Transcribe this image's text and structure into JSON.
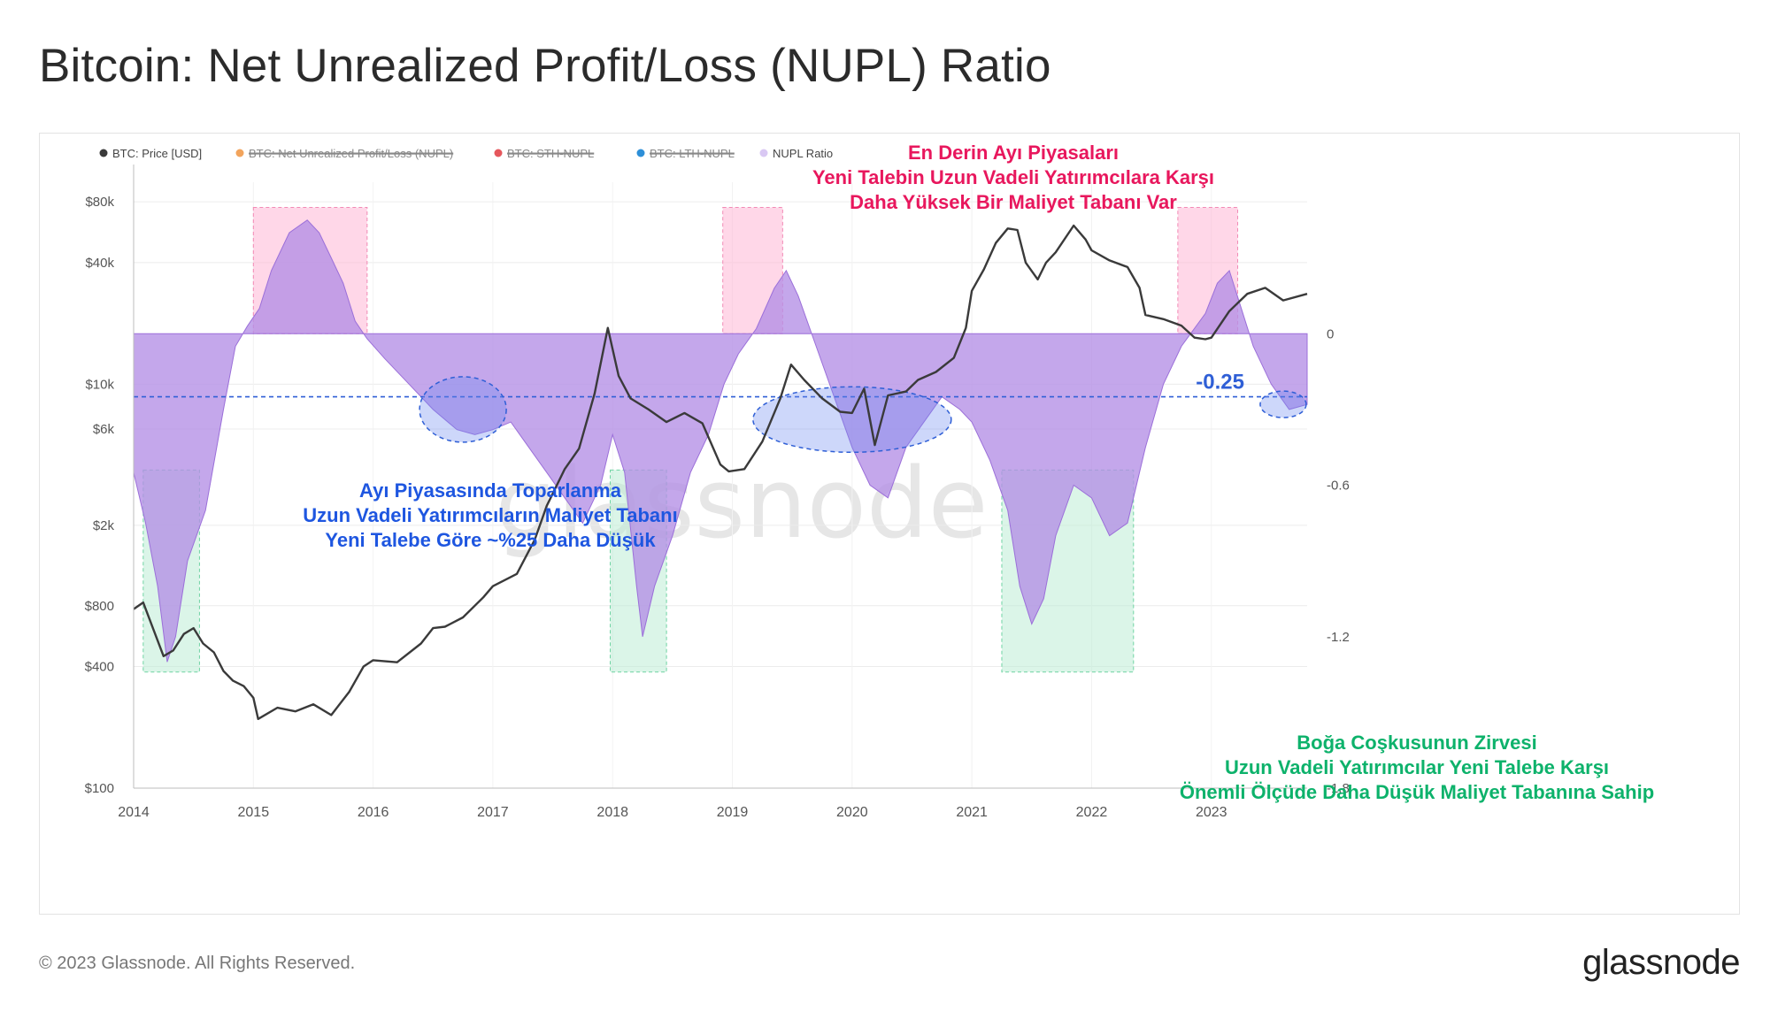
{
  "page": {
    "title": "Bitcoin: Net Unrealized Profit/Loss (NUPL) Ratio",
    "copyright": "© 2023 Glassnode. All Rights Reserved.",
    "logo": "glassnode",
    "watermark": "glassnode"
  },
  "colors": {
    "price": "#3a3a3a",
    "nupl_fill": "#b48ee6",
    "euphoria_box": "#ffb6d5",
    "euphoria_text": "#e8175d",
    "capitulation_box": "#b8ecd2",
    "capitulation_text": "#0db26b",
    "bear_text": "#1e56e0",
    "level_line": "#2f5fd6"
  },
  "chart_data": {
    "type": "area",
    "title": "Bitcoin: Net Unrealized Profit/Loss (NUPL) Ratio",
    "xlabel": "",
    "ylabel": "",
    "x_ticks": [
      "2014",
      "2015",
      "2016",
      "2017",
      "2018",
      "2019",
      "2020",
      "2021",
      "2022",
      "2023"
    ],
    "y_left_ticks": [
      "$80k",
      "$40k",
      "$10k",
      "$6k",
      "$2k",
      "$800",
      "$400",
      "$100"
    ],
    "y_right_ticks": [
      "0",
      "-0.6",
      "-1.2",
      "-1.8"
    ],
    "y_left_scale": "log",
    "y_left_range": [
      100,
      100000
    ],
    "y_right_range": [
      -1.8,
      0.6
    ],
    "grid": true,
    "legend_position": "top-left",
    "legend": [
      {
        "label": "BTC: Price [USD]",
        "color": "#3a3a3a",
        "disabled": false
      },
      {
        "label": "BTC: Net Unrealized Profit/Loss (NUPL)",
        "color": "#f2a45c",
        "disabled": true
      },
      {
        "label": "BTC: STH-NUPL",
        "color": "#e5575c",
        "disabled": true
      },
      {
        "label": "BTC: LTH-NUPL",
        "color": "#2d8fd8",
        "disabled": true
      },
      {
        "label": "NUPL Ratio",
        "color": "#d9c8f3",
        "disabled": false
      }
    ],
    "series": [
      {
        "name": "BTC: Price [USD]",
        "type": "line",
        "axis": "left",
        "x": [
          2014.0,
          2014.08,
          2014.17,
          2014.25,
          2014.33,
          2014.42,
          2014.5,
          2014.58,
          2014.67,
          2014.75,
          2014.83,
          2014.92,
          2015.0,
          2015.04,
          2015.2,
          2015.35,
          2015.5,
          2015.65,
          2015.8,
          2015.92,
          2016.0,
          2016.2,
          2016.4,
          2016.5,
          2016.6,
          2016.75,
          2016.92,
          2017.0,
          2017.2,
          2017.35,
          2017.45,
          2017.6,
          2017.72,
          2017.85,
          2017.96,
          2018.05,
          2018.15,
          2018.3,
          2018.45,
          2018.6,
          2018.75,
          2018.9,
          2018.97,
          2019.1,
          2019.25,
          2019.4,
          2019.49,
          2019.6,
          2019.75,
          2019.9,
          2020.0,
          2020.1,
          2020.19,
          2020.3,
          2020.45,
          2020.55,
          2020.7,
          2020.85,
          2020.95,
          2021.0,
          2021.1,
          2021.2,
          2021.3,
          2021.38,
          2021.45,
          2021.55,
          2021.62,
          2021.7,
          2021.85,
          2021.95,
          2022.0,
          2022.15,
          2022.3,
          2022.4,
          2022.45,
          2022.6,
          2022.75,
          2022.86,
          2022.95,
          2023.0,
          2023.15,
          2023.3,
          2023.45,
          2023.6,
          2023.8
        ],
        "values": [
          770,
          830,
          600,
          450,
          480,
          580,
          620,
          520,
          470,
          380,
          340,
          320,
          280,
          220,
          250,
          240,
          260,
          230,
          300,
          400,
          430,
          420,
          520,
          620,
          630,
          700,
          880,
          1000,
          1150,
          1700,
          2500,
          3800,
          4800,
          9000,
          19000,
          11000,
          8500,
          7500,
          6500,
          7200,
          6400,
          4000,
          3700,
          3800,
          5200,
          8500,
          12500,
          10500,
          8500,
          7300,
          7200,
          9500,
          5000,
          8800,
          9200,
          10500,
          11500,
          13500,
          19000,
          29000,
          37000,
          50000,
          59000,
          58000,
          40000,
          33000,
          40000,
          45000,
          61000,
          52000,
          46000,
          41000,
          38000,
          30000,
          22000,
          21000,
          19500,
          17000,
          16700,
          17000,
          23000,
          28000,
          30000,
          26000,
          28000
        ]
      },
      {
        "name": "NUPL Ratio",
        "type": "area",
        "axis": "right",
        "x": [
          2014.0,
          2014.1,
          2014.2,
          2014.28,
          2014.35,
          2014.45,
          2014.6,
          2014.75,
          2014.85,
          2014.95,
          2015.05,
          2015.15,
          2015.3,
          2015.45,
          2015.55,
          2015.65,
          2015.75,
          2015.85,
          2015.95,
          2016.1,
          2016.3,
          2016.5,
          2016.7,
          2016.85,
          2017.0,
          2017.15,
          2017.3,
          2017.45,
          2017.6,
          2017.75,
          2017.9,
          2018.0,
          2018.1,
          2018.2,
          2018.25,
          2018.35,
          2018.5,
          2018.65,
          2018.8,
          2018.93,
          2019.05,
          2019.2,
          2019.35,
          2019.45,
          2019.55,
          2019.7,
          2019.85,
          2020.0,
          2020.15,
          2020.3,
          2020.45,
          2020.6,
          2020.75,
          2020.9,
          2021.0,
          2021.15,
          2021.3,
          2021.4,
          2021.5,
          2021.6,
          2021.7,
          2021.85,
          2022.0,
          2022.15,
          2022.3,
          2022.45,
          2022.6,
          2022.75,
          2022.95,
          2023.05,
          2023.15,
          2023.25,
          2023.35,
          2023.5,
          2023.65,
          2023.8
        ],
        "values": [
          -0.55,
          -0.75,
          -1.0,
          -1.3,
          -1.2,
          -0.9,
          -0.7,
          -0.3,
          -0.05,
          0.03,
          0.1,
          0.25,
          0.4,
          0.45,
          0.4,
          0.3,
          0.2,
          0.05,
          -0.02,
          -0.1,
          -0.2,
          -0.3,
          -0.38,
          -0.4,
          -0.38,
          -0.35,
          -0.45,
          -0.55,
          -0.65,
          -0.75,
          -0.6,
          -0.4,
          -0.55,
          -1.0,
          -1.2,
          -1.0,
          -0.8,
          -0.55,
          -0.4,
          -0.2,
          -0.08,
          0.02,
          0.18,
          0.25,
          0.15,
          -0.05,
          -0.25,
          -0.45,
          -0.6,
          -0.65,
          -0.45,
          -0.35,
          -0.25,
          -0.3,
          -0.35,
          -0.5,
          -0.7,
          -1.0,
          -1.15,
          -1.05,
          -0.8,
          -0.6,
          -0.65,
          -0.8,
          -0.75,
          -0.45,
          -0.2,
          -0.05,
          0.08,
          0.2,
          0.25,
          0.1,
          -0.05,
          -0.2,
          -0.3,
          -0.28
        ]
      }
    ],
    "reference_line": {
      "value": -0.25,
      "label": "-0.25"
    },
    "regions": [
      {
        "kind": "euphoria",
        "x0": 2015.0,
        "x1": 2015.95,
        "y0": 0.5,
        "y1": 0.0
      },
      {
        "kind": "euphoria",
        "x0": 2018.92,
        "x1": 2019.42,
        "y0": 0.5,
        "y1": 0.0
      },
      {
        "kind": "euphoria",
        "x0": 2022.72,
        "x1": 2023.22,
        "y0": 0.5,
        "y1": 0.0
      },
      {
        "kind": "capitulation",
        "x0": 2014.08,
        "x1": 2014.55,
        "y0": -0.54,
        "y1": -1.34
      },
      {
        "kind": "capitulation",
        "x0": 2017.98,
        "x1": 2018.45,
        "y0": -0.54,
        "y1": -1.34
      },
      {
        "kind": "capitulation",
        "x0": 2021.25,
        "x1": 2022.35,
        "y0": -0.54,
        "y1": -1.34
      }
    ],
    "ellipses": [
      {
        "x": 2016.75,
        "y": -0.3
      },
      {
        "x": 2020.0,
        "y": -0.34
      },
      {
        "x": 2023.6,
        "y": -0.28
      }
    ],
    "annotations": {
      "bear": [
        "En Derin Ayı Piyasaları",
        "Yeni Talebin Uzun Vadeli Yatırımcılara Karşı",
        "Daha Yüksek Bir Maliyet Tabanı Var"
      ],
      "recovery": [
        "Ayı Piyasasında Toparlanma",
        "Uzun Vadeli Yatırımcıların Maliyet Tabanı",
        "Yeni Talebe Göre ~%25 Daha Düşük"
      ],
      "euphoria": [
        "Boğa Coşkusunun Zirvesi",
        "Uzun Vadeli Yatırımcılar Yeni Talebe Karşı",
        "Önemli Ölçüde Daha Düşük Maliyet Tabanına Sahip"
      ]
    }
  }
}
